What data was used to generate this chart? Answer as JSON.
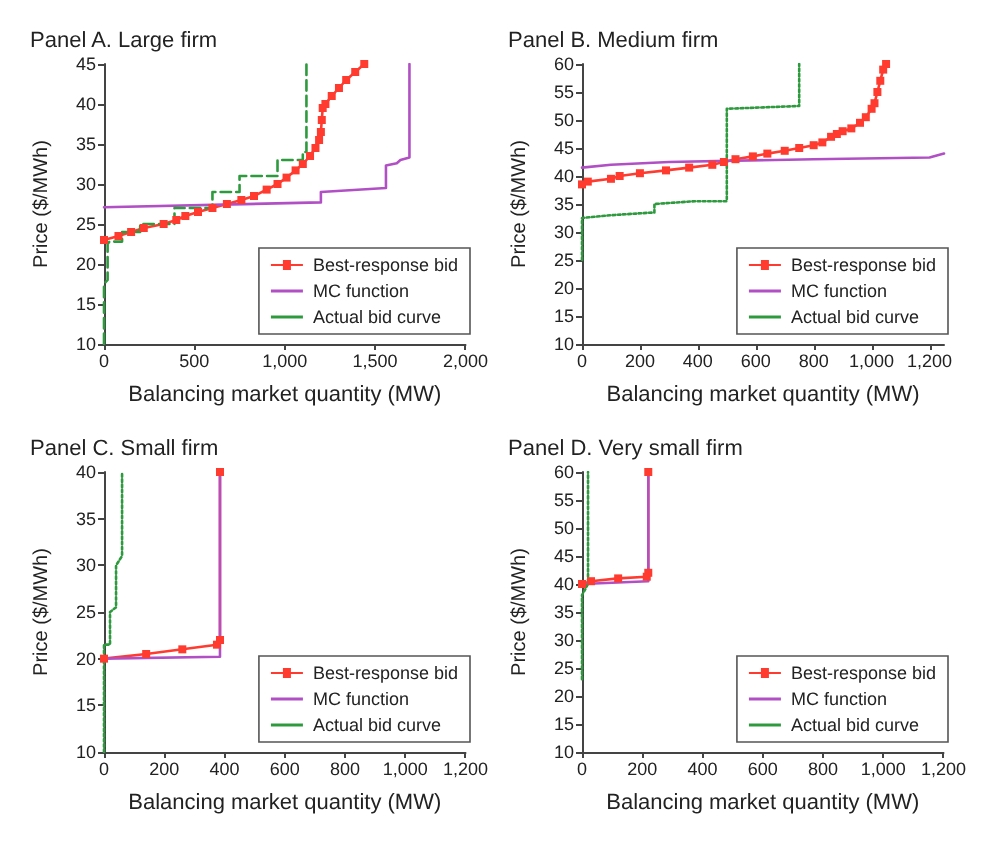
{
  "chart_data": [
    {
      "type": "line",
      "title": "Panel A. Large firm",
      "xlabel": "Balancing market quantity (MW)",
      "ylabel": "Price ($/MWh)",
      "xlim": [
        0,
        2000
      ],
      "xticks": [
        0,
        500,
        {
          "value": 1000,
          "label": "1,000"
        },
        {
          "value": 1500,
          "label": "1,500"
        },
        {
          "value": 2000,
          "label": "2,000"
        }
      ],
      "ylim": [
        10,
        45
      ],
      "yticks": [
        10,
        15,
        20,
        25,
        30,
        35,
        40,
        45
      ],
      "grid": false,
      "legend": "bottom right",
      "series": [
        {
          "name": "Best-response bid",
          "color": "#ff3b2f",
          "marker": "square",
          "line_style": "solid",
          "x": [
            0,
            80,
            150,
            220,
            330,
            400,
            450,
            520,
            600,
            680,
            760,
            830,
            900,
            960,
            1010,
            1060,
            1100,
            1140,
            1170,
            1190,
            1200,
            1205,
            1210,
            1225,
            1260,
            1300,
            1340,
            1390,
            1440
          ],
          "values": [
            23,
            23.5,
            24,
            24.5,
            25,
            25.5,
            26,
            26.5,
            27,
            27.5,
            28,
            28.5,
            29.3,
            30,
            30.8,
            31.7,
            32.5,
            33.5,
            34.5,
            35.5,
            36.5,
            38,
            39.5,
            40,
            41,
            42,
            43,
            44,
            45
          ]
        },
        {
          "name": "MC function",
          "color": "#b14fc5",
          "marker": "none",
          "line_style": "solid",
          "x": [
            0,
            1200,
            1200,
            1560,
            1560,
            1620,
            1640,
            1690,
            1690
          ],
          "values": [
            27.1,
            27.7,
            29,
            29.5,
            32.3,
            32.6,
            33,
            33.3,
            45
          ]
        },
        {
          "name": "Actual bid curve",
          "color": "#2e9a3e",
          "marker": "none",
          "line_style": "dashed",
          "x": [
            0,
            0,
            20,
            20,
            30,
            100,
            100,
            200,
            200,
            390,
            390,
            600,
            600,
            750,
            750,
            960,
            960,
            1100,
            1100,
            1120,
            1120
          ],
          "values": [
            10,
            17.5,
            18,
            22.5,
            22.8,
            22.8,
            24,
            24,
            25,
            25,
            27,
            27,
            29,
            29,
            31,
            31,
            33,
            33,
            34,
            34,
            45
          ]
        }
      ]
    },
    {
      "type": "line",
      "title": "Panel B. Medium firm",
      "xlabel": "Balancing market quantity (MW)",
      "ylabel": "Price ($/MWh)",
      "xlim": [
        0,
        1250
      ],
      "xticks": [
        0,
        200,
        400,
        600,
        800,
        {
          "value": 1000,
          "label": "1,000"
        },
        {
          "value": 1200,
          "label": "1,200"
        }
      ],
      "ylim": [
        10,
        60
      ],
      "yticks": [
        10,
        15,
        20,
        25,
        30,
        35,
        40,
        45,
        50,
        55,
        60
      ],
      "grid": false,
      "legend": "bottom right",
      "series": [
        {
          "name": "Best-response bid",
          "color": "#ff3b2f",
          "marker": "square",
          "line_style": "solid",
          "x": [
            0,
            20,
            100,
            130,
            200,
            290,
            370,
            450,
            490,
            530,
            590,
            640,
            700,
            750,
            800,
            830,
            860,
            880,
            900,
            930,
            960,
            980,
            1000,
            1010,
            1020,
            1030,
            1040,
            1050
          ],
          "values": [
            38.5,
            39,
            39.5,
            40,
            40.5,
            41,
            41.5,
            42,
            42.5,
            43,
            43.5,
            44,
            44.5,
            45,
            45.5,
            46,
            47,
            47.5,
            48,
            48.5,
            49.5,
            50.5,
            52,
            53,
            55,
            57,
            59,
            60
          ]
        },
        {
          "name": "MC function",
          "color": "#b14fc5",
          "marker": "none",
          "line_style": "solid",
          "x": [
            0,
            100,
            300,
            800,
            1200,
            1250
          ],
          "values": [
            41.5,
            42,
            42.5,
            43,
            43.3,
            44
          ]
        },
        {
          "name": "Actual bid curve",
          "color": "#2e9a3e",
          "marker": "none",
          "line_style": "dotted",
          "x": [
            0,
            0,
            100,
            250,
            250,
            390,
            500,
            500,
            750,
            750
          ],
          "values": [
            25,
            32.5,
            33,
            33.5,
            35,
            35.5,
            35.5,
            52,
            52.5,
            60
          ]
        }
      ]
    },
    {
      "type": "line",
      "title": "Panel C. Small firm",
      "xlabel": "Balancing market quantity (MW)",
      "ylabel": "Price ($/MWh)",
      "xlim": [
        0,
        1200
      ],
      "xticks": [
        0,
        200,
        400,
        600,
        800,
        {
          "value": 1000,
          "label": "1,000"
        },
        {
          "value": 1200,
          "label": "1,200"
        }
      ],
      "ylim": [
        10,
        40
      ],
      "yticks": [
        10,
        15,
        20,
        25,
        30,
        35,
        40
      ],
      "grid": false,
      "legend": "bottom right",
      "series": [
        {
          "name": "Best-response bid",
          "color": "#ff3b2f",
          "marker": "square",
          "line_style": "solid",
          "x": [
            0,
            140,
            260,
            375,
            385,
            385
          ],
          "values": [
            20,
            20.5,
            21,
            21.5,
            22,
            40
          ]
        },
        {
          "name": "MC function",
          "color": "#b14fc5",
          "marker": "none",
          "line_style": "solid",
          "x": [
            0,
            385,
            385
          ],
          "values": [
            20,
            20.2,
            40
          ]
        },
        {
          "name": "Actual bid curve",
          "color": "#2e9a3e",
          "marker": "none",
          "line_style": "dotted",
          "x": [
            0,
            0,
            20,
            20,
            40,
            40,
            60,
            60
          ],
          "values": [
            10,
            21.5,
            21.5,
            25,
            25.5,
            30,
            31,
            40
          ]
        }
      ]
    },
    {
      "type": "line",
      "title": "Panel D. Very small firm",
      "xlabel": "Balancing market quantity (MW)",
      "ylabel": "Price ($/MWh)",
      "xlim": [
        0,
        1200
      ],
      "xticks": [
        0,
        200,
        400,
        600,
        800,
        {
          "value": 1000,
          "label": "1,000"
        },
        {
          "value": 1200,
          "label": "1,200"
        }
      ],
      "ylim": [
        10,
        60
      ],
      "yticks": [
        10,
        15,
        20,
        25,
        30,
        35,
        40,
        45,
        50,
        55,
        60
      ],
      "grid": false,
      "legend": "bottom right",
      "series": [
        {
          "name": "Best-response bid",
          "color": "#ff3b2f",
          "marker": "square",
          "line_style": "solid",
          "x": [
            0,
            30,
            120,
            215,
            220,
            220
          ],
          "values": [
            40,
            40.5,
            41,
            41.3,
            42,
            60
          ]
        },
        {
          "name": "MC function",
          "color": "#b14fc5",
          "marker": "none",
          "line_style": "solid",
          "x": [
            0,
            220,
            220
          ],
          "values": [
            40,
            40.5,
            60
          ]
        },
        {
          "name": "Actual bid curve",
          "color": "#2e9a3e",
          "marker": "none",
          "line_style": "dotted",
          "x": [
            0,
            0,
            20,
            20
          ],
          "values": [
            23,
            38,
            40,
            60
          ]
        }
      ]
    }
  ]
}
